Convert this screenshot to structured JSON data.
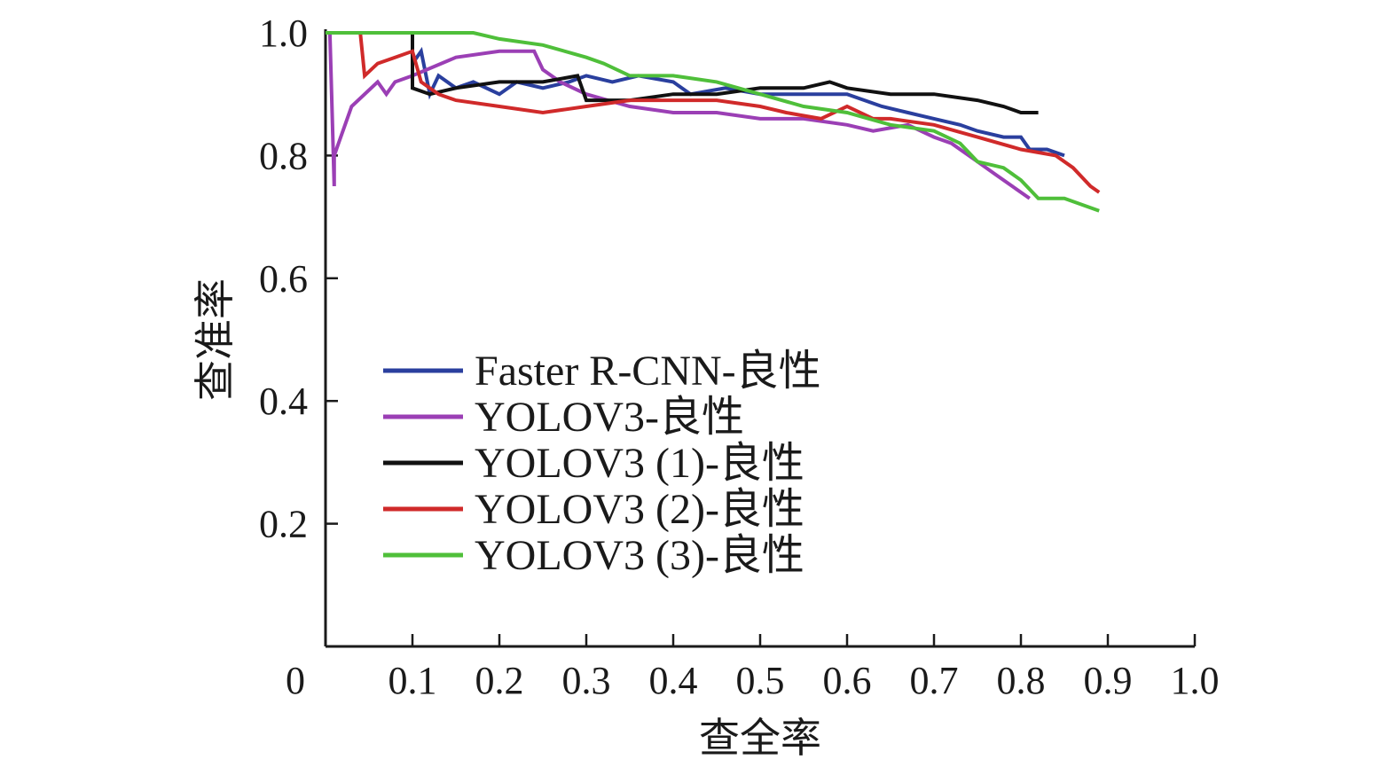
{
  "chart_data": {
    "type": "line",
    "title": "",
    "xlabel": "查全率",
    "ylabel": "查准率",
    "xlim": [
      0,
      1.0
    ],
    "ylim": [
      0,
      1.0
    ],
    "x_ticks": [
      {
        "value": 0,
        "label": "0"
      },
      {
        "value": 0.1,
        "label": "0.1"
      },
      {
        "value": 0.2,
        "label": "0.2"
      },
      {
        "value": 0.3,
        "label": "0.3"
      },
      {
        "value": 0.4,
        "label": "0.4"
      },
      {
        "value": 0.5,
        "label": "0.5"
      },
      {
        "value": 0.6,
        "label": "0.6"
      },
      {
        "value": 0.7,
        "label": "0.7"
      },
      {
        "value": 0.8,
        "label": "0.8"
      },
      {
        "value": 0.9,
        "label": "0.9"
      },
      {
        "value": 1.0,
        "label": "1.0"
      }
    ],
    "y_ticks": [
      {
        "value": 0.2,
        "label": "0.2"
      },
      {
        "value": 0.4,
        "label": "0.4"
      },
      {
        "value": 0.6,
        "label": "0.6"
      },
      {
        "value": 0.8,
        "label": "0.8"
      },
      {
        "value": 1.0,
        "label": "1.0"
      }
    ],
    "grid": false,
    "legend_position": "center-left",
    "series": [
      {
        "name": "Faster R-CNN-良性",
        "color": "#2a3f9e",
        "x": [
          0.0,
          0.05,
          0.1,
          0.1,
          0.11,
          0.12,
          0.13,
          0.15,
          0.17,
          0.2,
          0.22,
          0.25,
          0.28,
          0.3,
          0.33,
          0.36,
          0.4,
          0.42,
          0.46,
          0.5,
          0.55,
          0.6,
          0.64,
          0.67,
          0.7,
          0.73,
          0.75,
          0.78,
          0.8,
          0.81,
          0.83,
          0.85
        ],
        "y": [
          1.0,
          1.0,
          1.0,
          0.95,
          0.97,
          0.9,
          0.93,
          0.91,
          0.92,
          0.9,
          0.92,
          0.91,
          0.92,
          0.93,
          0.92,
          0.93,
          0.92,
          0.9,
          0.91,
          0.9,
          0.9,
          0.9,
          0.88,
          0.87,
          0.86,
          0.85,
          0.84,
          0.83,
          0.83,
          0.81,
          0.81,
          0.8
        ]
      },
      {
        "name": "YOLOV3-良性",
        "color": "#9b3fb5",
        "x": [
          0.0,
          0.005,
          0.01,
          0.01,
          0.03,
          0.06,
          0.07,
          0.08,
          0.1,
          0.15,
          0.2,
          0.24,
          0.25,
          0.27,
          0.3,
          0.35,
          0.4,
          0.45,
          0.5,
          0.55,
          0.6,
          0.63,
          0.67,
          0.7,
          0.72,
          0.75,
          0.77,
          0.79,
          0.81
        ],
        "y": [
          1.0,
          1.0,
          0.75,
          0.8,
          0.88,
          0.92,
          0.9,
          0.92,
          0.93,
          0.96,
          0.97,
          0.97,
          0.94,
          0.92,
          0.9,
          0.88,
          0.87,
          0.87,
          0.86,
          0.86,
          0.85,
          0.84,
          0.85,
          0.83,
          0.82,
          0.79,
          0.77,
          0.75,
          0.73
        ]
      },
      {
        "name": "YOLOV3 (1)-良性",
        "color": "#111111",
        "x": [
          0.0,
          0.1,
          0.1,
          0.12,
          0.15,
          0.2,
          0.25,
          0.29,
          0.3,
          0.35,
          0.4,
          0.45,
          0.5,
          0.55,
          0.58,
          0.6,
          0.65,
          0.7,
          0.75,
          0.78,
          0.8,
          0.82
        ],
        "y": [
          1.0,
          1.0,
          0.91,
          0.9,
          0.91,
          0.92,
          0.92,
          0.93,
          0.89,
          0.89,
          0.9,
          0.9,
          0.91,
          0.91,
          0.92,
          0.91,
          0.9,
          0.9,
          0.89,
          0.88,
          0.87,
          0.87
        ]
      },
      {
        "name": "YOLOV3 (2)-良性",
        "color": "#d02a2a",
        "x": [
          0.0,
          0.04,
          0.045,
          0.06,
          0.08,
          0.1,
          0.11,
          0.13,
          0.15,
          0.2,
          0.25,
          0.3,
          0.35,
          0.4,
          0.45,
          0.5,
          0.53,
          0.57,
          0.6,
          0.63,
          0.65,
          0.7,
          0.75,
          0.8,
          0.84,
          0.86,
          0.88,
          0.89
        ],
        "y": [
          1.0,
          1.0,
          0.93,
          0.95,
          0.96,
          0.97,
          0.92,
          0.9,
          0.89,
          0.88,
          0.87,
          0.88,
          0.89,
          0.89,
          0.89,
          0.88,
          0.87,
          0.86,
          0.88,
          0.86,
          0.86,
          0.85,
          0.83,
          0.81,
          0.8,
          0.78,
          0.75,
          0.74
        ]
      },
      {
        "name": "YOLOV3 (3)-良性",
        "color": "#4fbf3a",
        "x": [
          0.0,
          0.17,
          0.2,
          0.25,
          0.3,
          0.32,
          0.35,
          0.4,
          0.45,
          0.5,
          0.55,
          0.6,
          0.65,
          0.7,
          0.73,
          0.75,
          0.78,
          0.8,
          0.82,
          0.85,
          0.87,
          0.89
        ],
        "y": [
          1.0,
          1.0,
          0.99,
          0.98,
          0.96,
          0.95,
          0.93,
          0.93,
          0.92,
          0.9,
          0.88,
          0.87,
          0.85,
          0.84,
          0.82,
          0.79,
          0.78,
          0.76,
          0.73,
          0.73,
          0.72,
          0.71
        ]
      }
    ]
  }
}
